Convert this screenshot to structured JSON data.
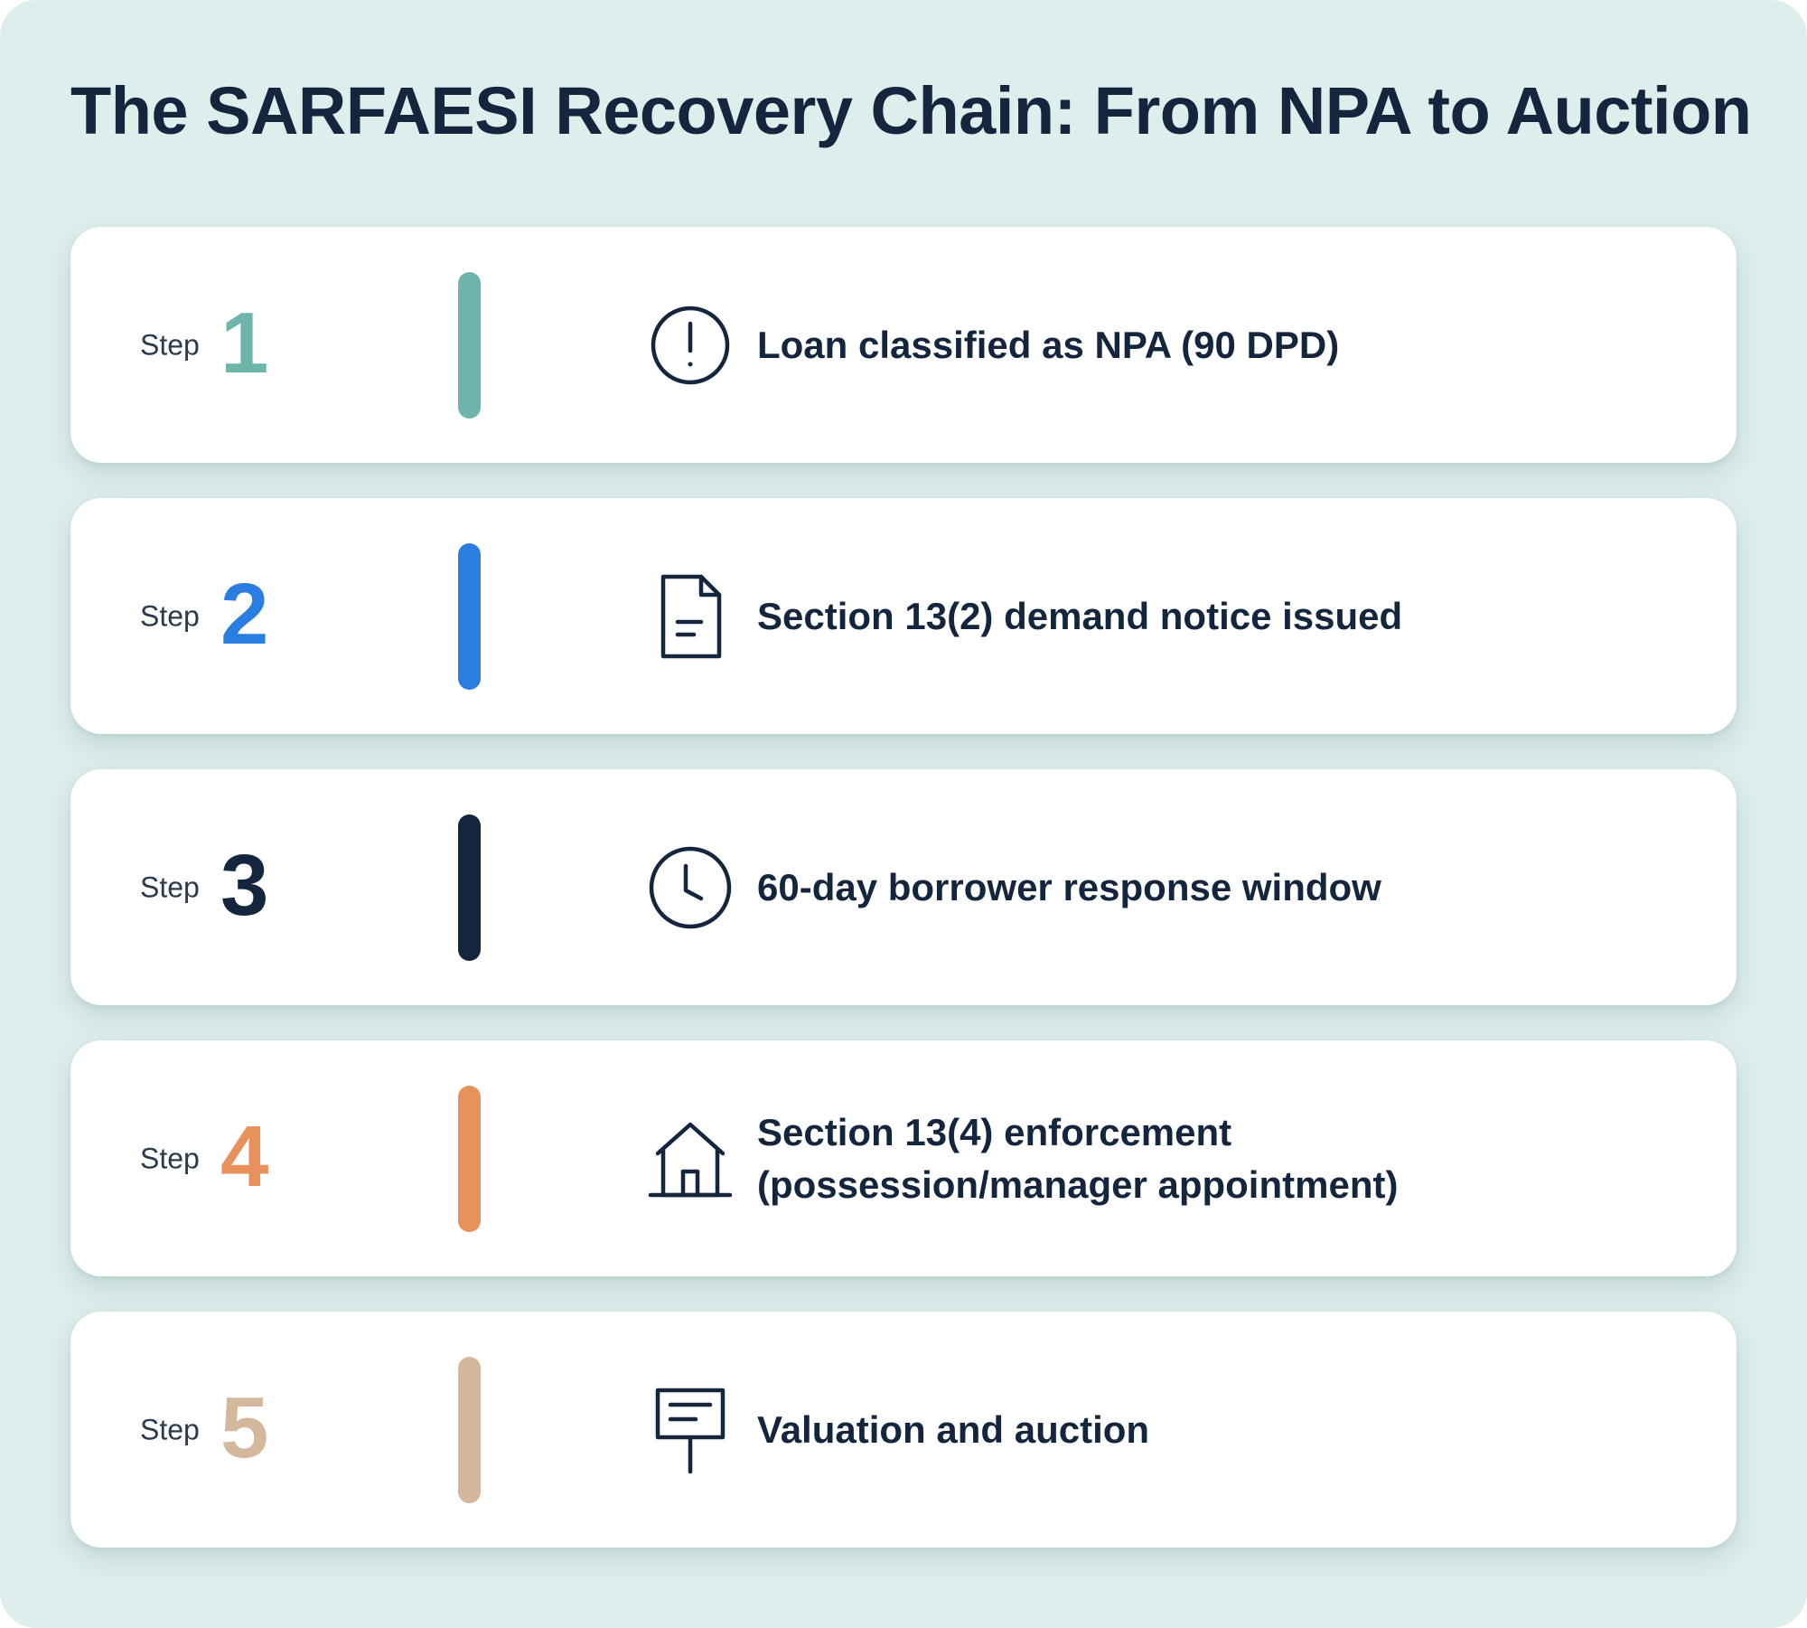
{
  "title": "The SARFAESI Recovery Chain: From NPA to Auction",
  "step_label": "Step",
  "steps": [
    {
      "number": "1",
      "lines": [
        "Loan classified as NPA (90 DPD)"
      ],
      "icon": "alert-circle-icon",
      "color": "#6db5aa"
    },
    {
      "number": "2",
      "lines": [
        "Section 13(2) demand notice issued"
      ],
      "icon": "document-icon",
      "color": "#2a7de1"
    },
    {
      "number": "3",
      "lines": [
        "60-day borrower response window"
      ],
      "icon": "clock-icon",
      "color": "#14263d"
    },
    {
      "number": "4",
      "lines": [
        "Section 13(4) enforcement",
        "(possession/manager appointment)"
      ],
      "icon": "house-icon",
      "color": "#e8915a"
    },
    {
      "number": "5",
      "lines": [
        "Valuation and auction"
      ],
      "icon": "auction-sign-icon",
      "color": "#d4b89c"
    }
  ]
}
